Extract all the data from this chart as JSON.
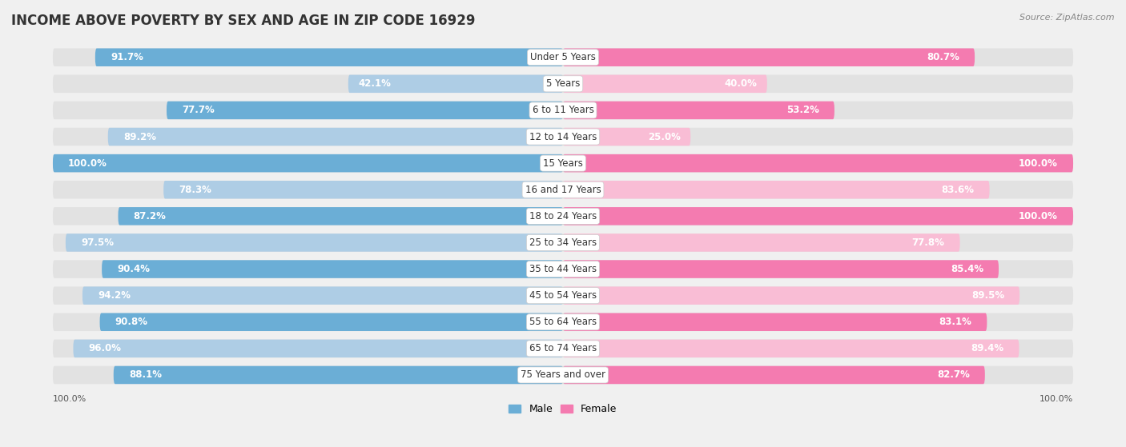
{
  "title": "INCOME ABOVE POVERTY BY SEX AND AGE IN ZIP CODE 16929",
  "source": "Source: ZipAtlas.com",
  "categories": [
    "Under 5 Years",
    "5 Years",
    "6 to 11 Years",
    "12 to 14 Years",
    "15 Years",
    "16 and 17 Years",
    "18 to 24 Years",
    "25 to 34 Years",
    "35 to 44 Years",
    "45 to 54 Years",
    "55 to 64 Years",
    "65 to 74 Years",
    "75 Years and over"
  ],
  "male_values": [
    91.7,
    42.1,
    77.7,
    89.2,
    100.0,
    78.3,
    87.2,
    97.5,
    90.4,
    94.2,
    90.8,
    96.0,
    88.1
  ],
  "female_values": [
    80.7,
    40.0,
    53.2,
    25.0,
    100.0,
    83.6,
    100.0,
    77.8,
    85.4,
    89.5,
    83.1,
    89.4,
    82.7
  ],
  "male_color": "#6baed6",
  "male_color_light": "#aecde5",
  "female_color": "#f47bb0",
  "female_color_light": "#f9bdd5",
  "bg_bar_color": "#e2e2e2",
  "fig_bg_color": "#f0f0f0",
  "title_fontsize": 12,
  "label_fontsize": 8.5,
  "value_fontsize": 8.5,
  "legend_fontsize": 9,
  "max_value": 100.0
}
